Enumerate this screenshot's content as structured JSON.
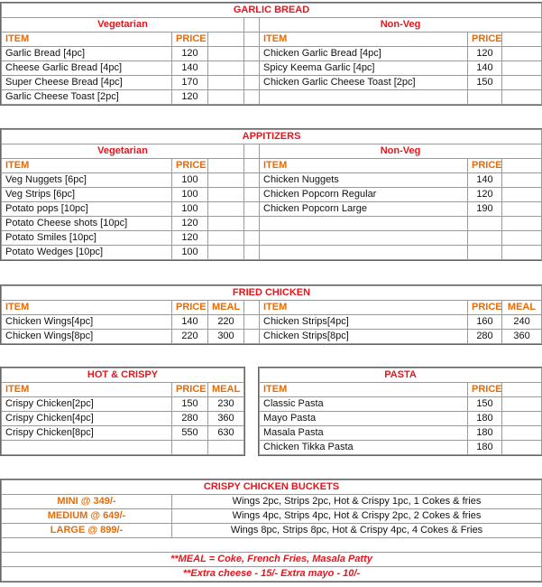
{
  "colors": {
    "title": "#e8141b",
    "column_header": "#e46c0a"
  },
  "garlic_bread": {
    "title": "GARLIC BREAD",
    "veg": {
      "heading": "Vegetarian",
      "item_col": "ITEM",
      "price_col": "PRICE",
      "rows": [
        [
          "Garlic Bread [4pc]",
          "120"
        ],
        [
          "Cheese Garlic Bread [4pc]",
          "140"
        ],
        [
          "Super Cheese Bread [4pc]",
          "170"
        ],
        [
          "Garlic Cheese Toast [2pc]",
          "120"
        ]
      ]
    },
    "nonveg": {
      "heading": "Non-Veg",
      "item_col": "ITEM",
      "price_col": "PRICE",
      "rows": [
        [
          "Chicken Garlic Bread [4pc]",
          "120"
        ],
        [
          "Spicy Keema Garlic [4pc]",
          "140"
        ],
        [
          "Chicken Garlic Cheese Toast [2pc]",
          "150"
        ],
        [
          "",
          ""
        ]
      ]
    }
  },
  "appetizers": {
    "title": "APPITIZERS",
    "veg": {
      "heading": "Vegetarian",
      "item_col": "ITEM",
      "price_col": "PRICE",
      "rows": [
        [
          "Veg Nuggets [6pc]",
          "100"
        ],
        [
          "Veg Strips [6pc]",
          "100"
        ],
        [
          "Potato pops [10pc]",
          "100"
        ],
        [
          "Potato Cheese shots [10pc]",
          "120"
        ],
        [
          "Potato Smiles [10pc]",
          "120"
        ],
        [
          "Potato Wedges [10pc]",
          "100"
        ]
      ]
    },
    "nonveg": {
      "heading": "Non-Veg",
      "item_col": "ITEM",
      "price_col": "PRICE",
      "rows": [
        [
          "Chicken Nuggets",
          "140"
        ],
        [
          "Chicken Popcorn Regular",
          "120"
        ],
        [
          "Chicken Popcorn Large",
          "190"
        ],
        [
          "",
          ""
        ],
        [
          "",
          ""
        ],
        [
          "",
          ""
        ]
      ]
    }
  },
  "fried_chicken": {
    "title": "FRIED CHICKEN",
    "left": {
      "item_col": "ITEM",
      "price_col": "PRICE",
      "meal_col": "MEAL",
      "rows": [
        [
          "Chicken Wings[4pc]",
          "140",
          "220"
        ],
        [
          "Chicken Wings[8pc]",
          "220",
          "300"
        ]
      ]
    },
    "right": {
      "item_col": "ITEM",
      "price_col": "PRICE",
      "meal_col": "MEAL",
      "rows": [
        [
          "Chicken Strips[4pc]",
          "160",
          "240"
        ],
        [
          "Chicken Strips[8pc]",
          "280",
          "360"
        ]
      ]
    }
  },
  "hot_crispy": {
    "title": "HOT & CRISPY",
    "item_col": "ITEM",
    "price_col": "PRICE",
    "meal_col": "MEAL",
    "rows": [
      [
        "Crispy Chicken[2pc]",
        "150",
        "230"
      ],
      [
        "Crispy Chicken[4pc]",
        "280",
        "360"
      ],
      [
        "Crispy Chicken[8pc]",
        "550",
        "630"
      ],
      [
        "",
        "",
        ""
      ]
    ]
  },
  "pasta": {
    "title": "PASTA",
    "item_col": "ITEM",
    "price_col": "PRICE",
    "rows": [
      [
        "Classic Pasta",
        "150"
      ],
      [
        "Mayo Pasta",
        "180"
      ],
      [
        "Masala Pasta",
        "180"
      ],
      [
        "Chicken Tikka Pasta",
        "180"
      ]
    ]
  },
  "buckets": {
    "title": "CRISPY CHICKEN BUCKETS",
    "rows": [
      [
        "MINI @ 349/-",
        "Wings 2pc, Strips 2pc, Hot & Crispy 1pc, 1 Cokes & fries"
      ],
      [
        "MEDIUM @ 649/-",
        "Wings 4pc, Strips 4pc, Hot & Crispy 2pc, 2 Cokes & fries"
      ],
      [
        "LARGE @ 899/-",
        "Wings 8pc, Strips 8pc, Hot & Crispy 4pc, 4 Cokes & Fries"
      ]
    ],
    "notes": [
      "**MEAL = Coke, French Fries, Masala Patty",
      "**Extra cheese - 15/- Extra mayo - 10/-"
    ]
  }
}
